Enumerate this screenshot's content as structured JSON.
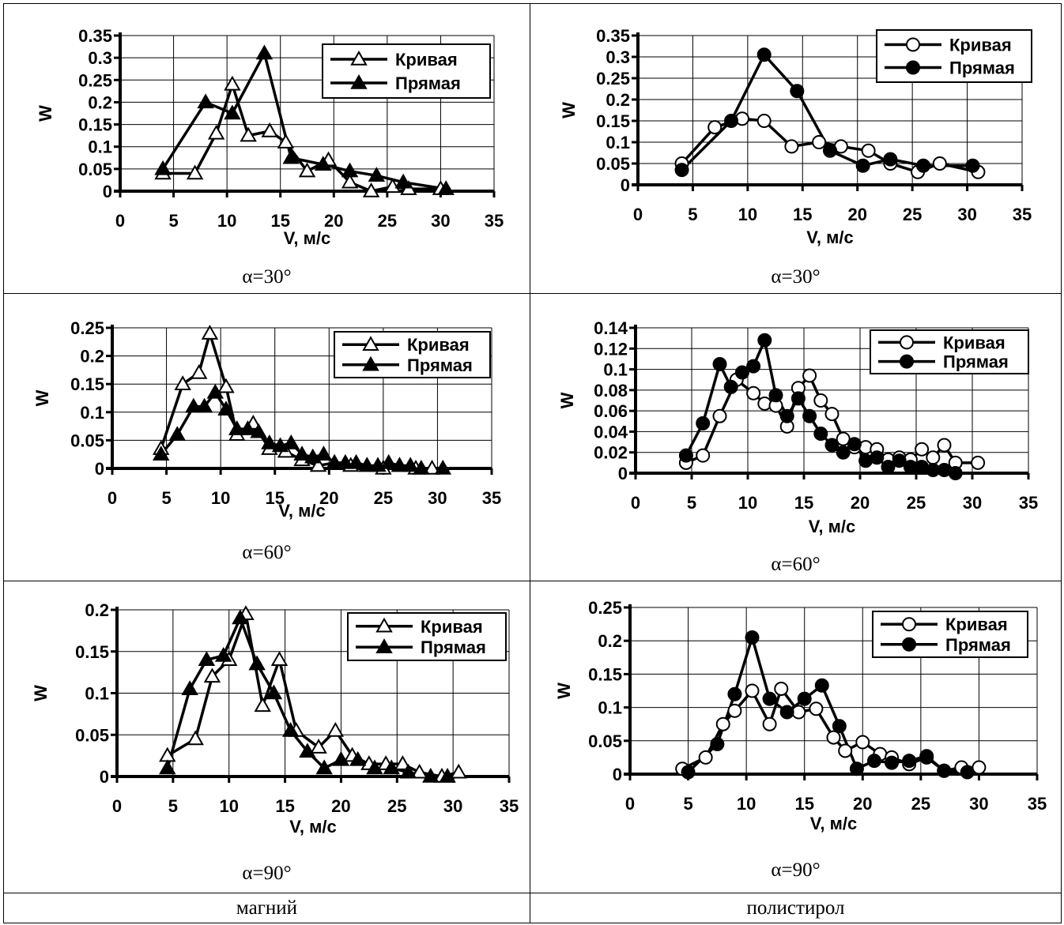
{
  "colors": {
    "line": "#000000",
    "grid": "#000000",
    "background": "#ffffff"
  },
  "materials": [
    "магний",
    "полистирол"
  ],
  "chart_data": [
    {
      "type": "line",
      "panel": "mg-30",
      "caption": "α=30°",
      "xlabel": "V, м/с",
      "ylabel": "W",
      "xlim": [
        0,
        35
      ],
      "ylim": [
        0,
        0.35
      ],
      "xticks": [
        0,
        5,
        10,
        15,
        20,
        25,
        30,
        35
      ],
      "yticks": [
        0,
        0.05,
        0.1,
        0.15,
        0.2,
        0.25,
        0.3,
        0.35
      ],
      "ytick_labels": [
        "0",
        "0.05",
        "0.1",
        "0.15",
        "0.2",
        "0.25",
        "0.3",
        "0.35"
      ],
      "grid": true,
      "legend": "top-right",
      "marker": "triangle",
      "series": [
        {
          "name": "Кривая",
          "filled": false,
          "x": [
            4,
            7,
            9,
            10.5,
            12,
            14,
            15.5,
            17.5,
            19.5,
            21.5,
            23.5,
            25.5,
            27,
            30
          ],
          "y": [
            0.04,
            0.04,
            0.13,
            0.24,
            0.125,
            0.135,
            0.11,
            0.045,
            0.07,
            0.02,
            0.0,
            0.01,
            0.005,
            0.005
          ]
        },
        {
          "name": "Прямая",
          "filled": true,
          "x": [
            4,
            8,
            10.5,
            13.5,
            16,
            19,
            21.5,
            24,
            26.5,
            30.5
          ],
          "y": [
            0.05,
            0.2,
            0.175,
            0.31,
            0.075,
            0.06,
            0.045,
            0.035,
            0.02,
            0.005
          ]
        }
      ]
    },
    {
      "type": "line",
      "panel": "ps-30",
      "caption": "α=30°",
      "xlabel": "V, м/с",
      "ylabel": "W",
      "xlim": [
        0,
        35
      ],
      "ylim": [
        0,
        0.35
      ],
      "xticks": [
        0,
        5,
        10,
        15,
        20,
        25,
        30,
        35
      ],
      "yticks": [
        0,
        0.05,
        0.1,
        0.15,
        0.2,
        0.25,
        0.3,
        0.35
      ],
      "ytick_labels": [
        "0",
        "0.05",
        "0.1",
        "0.15",
        "0.2",
        "0.25",
        "0.3",
        "0.35"
      ],
      "grid": true,
      "legend": "top-right",
      "marker": "circle",
      "series": [
        {
          "name": "Кривая",
          "filled": false,
          "x": [
            4,
            7,
            9.5,
            11.5,
            14,
            16.5,
            18.5,
            21,
            23,
            25.5,
            27.5,
            31
          ],
          "y": [
            0.05,
            0.135,
            0.155,
            0.15,
            0.09,
            0.1,
            0.09,
            0.08,
            0.05,
            0.03,
            0.05,
            0.03
          ]
        },
        {
          "name": "Прямая",
          "filled": true,
          "x": [
            4,
            8.5,
            11.5,
            14.5,
            17.5,
            20.5,
            23,
            26,
            30.5
          ],
          "y": [
            0.035,
            0.15,
            0.305,
            0.22,
            0.08,
            0.045,
            0.06,
            0.045,
            0.045
          ]
        }
      ]
    },
    {
      "type": "line",
      "panel": "mg-60",
      "caption": "α=60°",
      "xlabel": "V, м/с",
      "ylabel": "W",
      "xlim": [
        0,
        35
      ],
      "ylim": [
        0,
        0.25
      ],
      "xticks": [
        0,
        5,
        10,
        15,
        20,
        25,
        30,
        35
      ],
      "yticks": [
        0,
        0.05,
        0.1,
        0.15,
        0.2,
        0.25
      ],
      "ytick_labels": [
        "0",
        "0.05",
        "0.1",
        "0.15",
        "0.2",
        "0.25"
      ],
      "grid": true,
      "legend": "top-right",
      "marker": "triangle",
      "series": [
        {
          "name": "Кривая",
          "filled": false,
          "x": [
            4.5,
            6.5,
            8,
            9,
            10.5,
            11.5,
            13,
            14.5,
            16,
            17.5,
            19,
            20.5,
            22,
            23.5,
            25,
            26.5,
            28,
            29.5
          ],
          "y": [
            0.035,
            0.15,
            0.17,
            0.24,
            0.145,
            0.06,
            0.08,
            0.035,
            0.03,
            0.015,
            0.005,
            0.01,
            0.005,
            0.005,
            0.0,
            0.005,
            0.0,
            0.0
          ],
          "marker_size": 1
        },
        {
          "name": "Прямая",
          "filled": true,
          "x": [
            4.5,
            6,
            7.5,
            8.5,
            9.5,
            10.5,
            11.5,
            12.5,
            13.5,
            14.5,
            15.5,
            16.5,
            17.5,
            18.5,
            19.5,
            20.5,
            21.5,
            22.5,
            23.5,
            24.5,
            25.5,
            26.5,
            27.5,
            28.5,
            30.5
          ],
          "y": [
            0.025,
            0.06,
            0.11,
            0.11,
            0.135,
            0.105,
            0.07,
            0.07,
            0.065,
            0.045,
            0.04,
            0.045,
            0.025,
            0.02,
            0.025,
            0.01,
            0.01,
            0.01,
            0.005,
            0.005,
            0.01,
            0.005,
            0.005,
            0.0,
            0.0
          ]
        }
      ]
    },
    {
      "type": "line",
      "panel": "ps-60",
      "caption": "α=60°",
      "xlabel": "V, м/с",
      "ylabel": "W",
      "xlim": [
        0,
        35
      ],
      "ylim": [
        0,
        0.14
      ],
      "xticks": [
        0,
        5,
        10,
        15,
        20,
        25,
        30,
        35
      ],
      "yticks": [
        0,
        0.02,
        0.04,
        0.06,
        0.08,
        0.1,
        0.12,
        0.14
      ],
      "ytick_labels": [
        "0",
        "0.02",
        "0.04",
        "0.06",
        "0.08",
        "0.1",
        "0.12",
        "0.14"
      ],
      "grid": true,
      "legend": "top-right",
      "marker": "circle",
      "series": [
        {
          "name": "Кривая",
          "filled": false,
          "x": [
            4.5,
            6,
            7.5,
            9,
            10.5,
            11.5,
            12.5,
            13.5,
            14.5,
            15.5,
            16.5,
            17.5,
            18.5,
            19.5,
            20.5,
            21.5,
            22.5,
            23.5,
            24.5,
            25.5,
            26.5,
            27.5,
            28.5,
            30.5
          ],
          "y": [
            0.01,
            0.017,
            0.055,
            0.09,
            0.077,
            0.067,
            0.065,
            0.045,
            0.082,
            0.094,
            0.07,
            0.057,
            0.033,
            0.025,
            0.025,
            0.023,
            0.013,
            0.015,
            0.013,
            0.023,
            0.015,
            0.027,
            0.01,
            0.01
          ]
        },
        {
          "name": "Прямая",
          "filled": true,
          "x": [
            4.5,
            6,
            7.5,
            8.5,
            9.5,
            10.5,
            11.5,
            12.5,
            13.5,
            14.5,
            15.5,
            16.5,
            17.5,
            18.5,
            19.5,
            20.5,
            21.5,
            22.5,
            23.5,
            24.5,
            25.5,
            26.5,
            27.5,
            28.5
          ],
          "y": [
            0.017,
            0.048,
            0.105,
            0.083,
            0.097,
            0.103,
            0.128,
            0.075,
            0.055,
            0.072,
            0.055,
            0.038,
            0.027,
            0.02,
            0.028,
            0.012,
            0.015,
            0.006,
            0.012,
            0.006,
            0.006,
            0.003,
            0.003,
            0.0
          ]
        }
      ]
    },
    {
      "type": "line",
      "panel": "mg-90",
      "caption": "α=90°",
      "xlabel": "V, м/с",
      "ylabel": "W",
      "xlim": [
        0,
        35
      ],
      "ylim": [
        0,
        0.2
      ],
      "xticks": [
        0,
        5,
        10,
        15,
        20,
        25,
        30,
        35
      ],
      "yticks": [
        0,
        0.05,
        0.1,
        0.15,
        0.2
      ],
      "ytick_labels": [
        "0",
        "0.05",
        "0.1",
        "0.15",
        "0.2"
      ],
      "grid": true,
      "legend": "top-right",
      "marker": "triangle",
      "series": [
        {
          "name": "Кривая",
          "filled": false,
          "x": [
            4.5,
            7,
            8.5,
            10,
            11.5,
            13,
            14.5,
            16,
            18,
            19.5,
            21,
            22.5,
            24,
            25.5,
            27,
            29,
            30.5
          ],
          "y": [
            0.025,
            0.045,
            0.12,
            0.14,
            0.195,
            0.085,
            0.14,
            0.055,
            0.035,
            0.055,
            0.025,
            0.015,
            0.015,
            0.015,
            0.005,
            0.0,
            0.005
          ]
        },
        {
          "name": "Прямая",
          "filled": true,
          "x": [
            4.5,
            6.5,
            8,
            9.5,
            11,
            12.5,
            14,
            15.5,
            17,
            18.5,
            20,
            21.5,
            23,
            24.5,
            26,
            28,
            29.5
          ],
          "y": [
            0.01,
            0.105,
            0.14,
            0.145,
            0.19,
            0.135,
            0.1,
            0.055,
            0.03,
            0.01,
            0.02,
            0.02,
            0.01,
            0.01,
            0.005,
            0.0,
            0.0
          ]
        }
      ]
    },
    {
      "type": "line",
      "panel": "ps-90",
      "caption": "α=90°",
      "xlabel": "V, м/с",
      "ylabel": "W",
      "xlim": [
        0,
        35
      ],
      "ylim": [
        0,
        0.25
      ],
      "xticks": [
        0,
        5,
        10,
        15,
        20,
        25,
        30,
        35
      ],
      "yticks": [
        0,
        0.05,
        0.1,
        0.15,
        0.2,
        0.25
      ],
      "ytick_labels": [
        "0",
        "0.05",
        "0.1",
        "0.15",
        "0.2",
        "0.25"
      ],
      "grid": true,
      "legend": "top-right",
      "marker": "circle",
      "series": [
        {
          "name": "Кривая",
          "filled": false,
          "x": [
            4.5,
            6.5,
            8,
            9,
            10.5,
            12,
            13,
            14.5,
            16,
            17.5,
            18.5,
            20,
            21.5,
            22.5,
            24,
            25.5,
            27,
            28.5,
            30
          ],
          "y": [
            0.008,
            0.025,
            0.075,
            0.095,
            0.125,
            0.075,
            0.128,
            0.093,
            0.098,
            0.055,
            0.035,
            0.048,
            0.03,
            0.025,
            0.015,
            0.025,
            0.005,
            0.01,
            0.01
          ]
        },
        {
          "name": "Прямая",
          "filled": true,
          "x": [
            5,
            7.5,
            9,
            10.5,
            12,
            13.5,
            15,
            16.5,
            18,
            19.5,
            21,
            22.5,
            24,
            25.5,
            27,
            29
          ],
          "y": [
            0.003,
            0.045,
            0.12,
            0.205,
            0.113,
            0.093,
            0.113,
            0.133,
            0.072,
            0.008,
            0.02,
            0.017,
            0.02,
            0.027,
            0.005,
            0.003
          ]
        }
      ]
    }
  ]
}
